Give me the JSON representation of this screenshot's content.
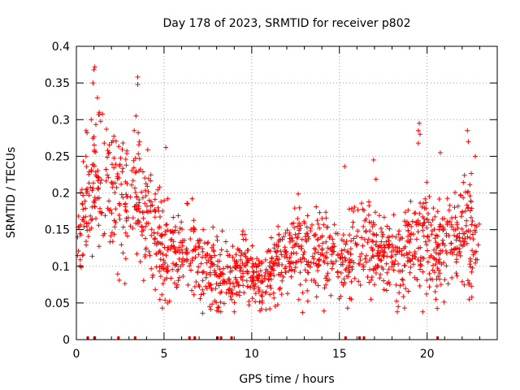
{
  "chart_data": {
    "type": "scatter",
    "title": "Day 178 of 2023, SRMTID for receiver p802",
    "xlabel": "GPS time / hours",
    "ylabel": "SRMTID / TECUs",
    "xlim": [
      0,
      24
    ],
    "ylim": [
      0,
      0.4
    ],
    "x_ticks": [
      0,
      5,
      10,
      15,
      20
    ],
    "x_tick_labels": [
      "0",
      "5",
      "10",
      "15",
      "20"
    ],
    "y_ticks": [
      0,
      0.05,
      0.1,
      0.15,
      0.2,
      0.25,
      0.3,
      0.35,
      0.4
    ],
    "y_tick_labels": [
      "0",
      "0.05",
      "0.1",
      "0.15",
      "0.2",
      "0.25",
      "0.3",
      "0.35",
      "0.4"
    ],
    "grid": true,
    "marker": "+",
    "color": "#ff0000",
    "gap_marker_color": "#cc0000",
    "gap_markers_x": [
      0.65,
      1.05,
      2.4,
      3.35,
      6.45,
      6.75,
      8.05,
      8.25,
      8.85,
      15.35,
      16.15,
      16.4,
      20.6
    ],
    "trend": {
      "x": [
        0.0,
        0.5,
        1.0,
        1.5,
        2.0,
        2.5,
        3.0,
        3.5,
        4.0,
        4.5,
        5.0,
        5.5,
        6.0,
        6.5,
        7.0,
        7.5,
        8.0,
        8.5,
        9.0,
        9.5,
        10.0,
        10.5,
        11.0,
        11.5,
        12.0,
        12.5,
        13.0,
        13.5,
        14.0,
        14.5,
        15.0,
        15.5,
        16.0,
        16.5,
        17.0,
        17.5,
        18.0,
        18.5,
        19.0,
        19.5,
        20.0,
        20.5,
        21.0,
        21.5,
        22.0,
        22.5,
        23.0
      ],
      "y": [
        0.14,
        0.17,
        0.21,
        0.22,
        0.2,
        0.19,
        0.18,
        0.19,
        0.17,
        0.14,
        0.12,
        0.12,
        0.12,
        0.13,
        0.11,
        0.1,
        0.09,
        0.1,
        0.1,
        0.1,
        0.09,
        0.08,
        0.09,
        0.1,
        0.12,
        0.13,
        0.12,
        0.12,
        0.12,
        0.12,
        0.11,
        0.12,
        0.13,
        0.14,
        0.13,
        0.12,
        0.12,
        0.11,
        0.12,
        0.14,
        0.14,
        0.13,
        0.13,
        0.14,
        0.15,
        0.14,
        0.15
      ]
    },
    "spread": {
      "x": [
        0.0,
        1.0,
        2.0,
        3.0,
        4.0,
        5.0,
        6.0,
        7.0,
        8.0,
        9.0,
        10.0,
        11.0,
        12.0,
        13.0,
        14.0,
        15.0,
        16.0,
        17.0,
        18.0,
        19.0,
        20.0,
        21.0,
        22.0,
        23.0
      ],
      "y": [
        0.03,
        0.05,
        0.045,
        0.04,
        0.04,
        0.035,
        0.03,
        0.03,
        0.025,
        0.025,
        0.02,
        0.02,
        0.025,
        0.03,
        0.03,
        0.025,
        0.03,
        0.03,
        0.025,
        0.03,
        0.035,
        0.035,
        0.04,
        0.035
      ]
    },
    "outliers": [
      {
        "x": 1.05,
        "y": 0.372
      },
      {
        "x": 1.0,
        "y": 0.368
      },
      {
        "x": 0.95,
        "y": 0.35
      },
      {
        "x": 1.2,
        "y": 0.33
      },
      {
        "x": 1.3,
        "y": 0.31
      },
      {
        "x": 0.85,
        "y": 0.3
      },
      {
        "x": 3.5,
        "y": 0.358
      },
      {
        "x": 3.5,
        "y": 0.348
      },
      {
        "x": 3.4,
        "y": 0.305
      },
      {
        "x": 3.3,
        "y": 0.285
      },
      {
        "x": 3.6,
        "y": 0.27
      },
      {
        "x": 0.55,
        "y": 0.285
      },
      {
        "x": 19.55,
        "y": 0.295
      },
      {
        "x": 19.5,
        "y": 0.285
      },
      {
        "x": 19.6,
        "y": 0.28
      },
      {
        "x": 19.5,
        "y": 0.268
      },
      {
        "x": 22.3,
        "y": 0.285
      },
      {
        "x": 22.35,
        "y": 0.27
      },
      {
        "x": 20.75,
        "y": 0.255
      },
      {
        "x": 5.1,
        "y": 0.262
      },
      {
        "x": 22.75,
        "y": 0.25
      },
      {
        "x": 15.3,
        "y": 0.236
      },
      {
        "x": 16.95,
        "y": 0.245
      },
      {
        "x": 4.9,
        "y": 0.043
      },
      {
        "x": 5.2,
        "y": 0.05
      },
      {
        "x": 7.2,
        "y": 0.036
      },
      {
        "x": 7.6,
        "y": 0.045
      },
      {
        "x": 9.0,
        "y": 0.038
      },
      {
        "x": 10.55,
        "y": 0.042
      },
      {
        "x": 10.6,
        "y": 0.05
      },
      {
        "x": 18.3,
        "y": 0.038
      },
      {
        "x": 18.35,
        "y": 0.045
      },
      {
        "x": 19.75,
        "y": 0.038
      },
      {
        "x": 20.5,
        "y": 0.055
      },
      {
        "x": 22.4,
        "y": 0.055
      },
      {
        "x": 22.55,
        "y": 0.058
      },
      {
        "x": 16.8,
        "y": 0.055
      },
      {
        "x": 12.9,
        "y": 0.037
      }
    ],
    "n_points": 1500
  }
}
